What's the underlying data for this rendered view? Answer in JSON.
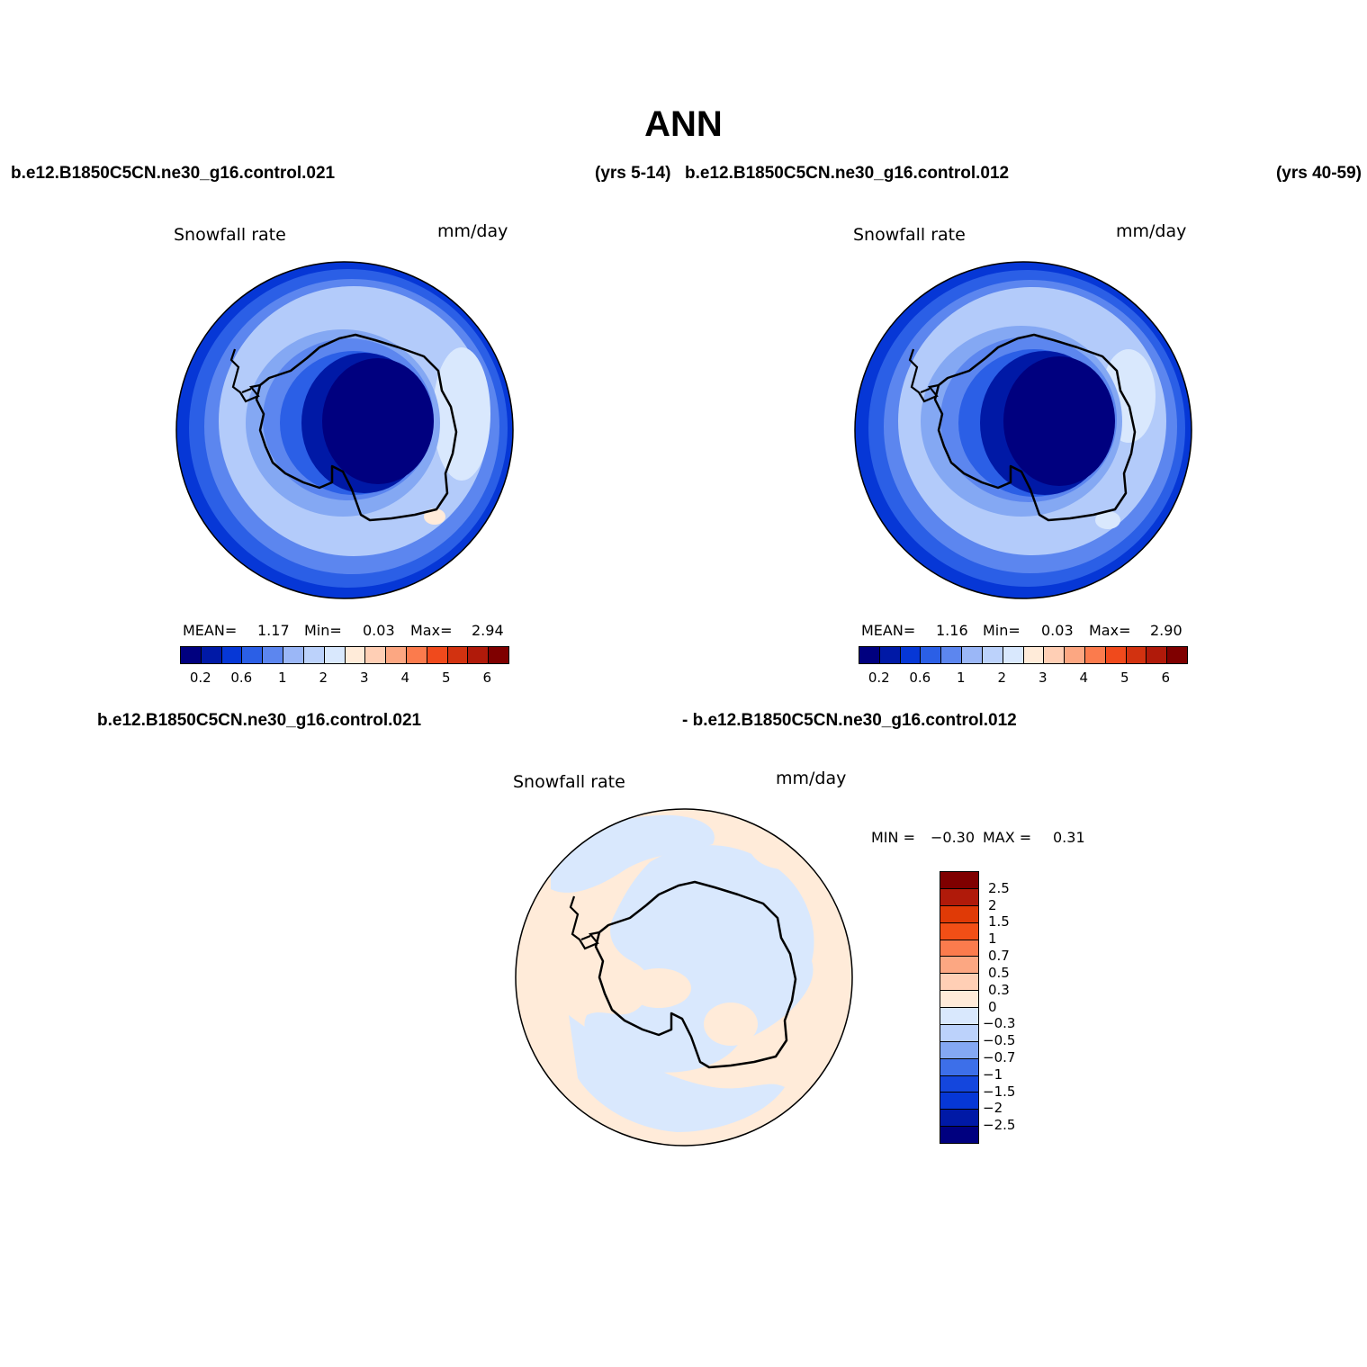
{
  "title": "ANN",
  "header": {
    "case1": "b.e12.B1850C5CN.ne30_g16.control.021",
    "years1": "(yrs 5-14)",
    "case2": "b.e12.B1850C5CN.ne30_g16.control.012",
    "years2": "(yrs 40-59)",
    "diff_case1": "b.e12.B1850C5CN.ne30_g16.control.021",
    "diff_case2": "- b.e12.B1850C5CN.ne30_g16.control.012"
  },
  "panels": [
    {
      "variable": "Snowfall rate",
      "units": "mm/day",
      "stats": {
        "mean_label": "MEAN=",
        "mean": "1.17",
        "min_label": "Min=",
        "min": "0.03",
        "max_label": "Max=",
        "max": "2.94"
      }
    },
    {
      "variable": "Snowfall rate",
      "units": "mm/day",
      "stats": {
        "mean_label": "MEAN=",
        "mean": "1.16",
        "min_label": "Min=",
        "min": "0.03",
        "max_label": "Max=",
        "max": "2.90"
      }
    },
    {
      "variable": "Snowfall rate",
      "units": "mm/day",
      "stats": {
        "min_label": "MIN =",
        "min": "−0.30",
        "max_label": "MAX =",
        "max": "0.31"
      }
    }
  ],
  "colorbar_main": {
    "ticks": [
      "0.2",
      "0.6",
      "1",
      "2",
      "3",
      "4",
      "5",
      "6"
    ],
    "colors": [
      "#00007f",
      "#0019a6",
      "#0637d6",
      "#2b5fe6",
      "#5c86ef",
      "#9bb7f7",
      "#bcd2fb",
      "#d9e8fd",
      "#ffebd9",
      "#ffcfb5",
      "#fca782",
      "#fb7b4d",
      "#f04a1c",
      "#d23210",
      "#b01a0a",
      "#7f0000"
    ]
  },
  "colorbar_diff": {
    "ticks": [
      "2.5",
      "2",
      "1.5",
      "1",
      "0.7",
      "0.5",
      "0.3",
      "0",
      "−0.3",
      "−0.5",
      "−0.7",
      "−1",
      "−1.5",
      "−2",
      "−2.5"
    ],
    "colors": [
      "#7f0000",
      "#b01a0a",
      "#e03a06",
      "#f24f16",
      "#fb7b4d",
      "#fca782",
      "#ffcfb5",
      "#ffebd9",
      "#d9e8fd",
      "#bcd2fb",
      "#84a8f3",
      "#3d6fe9",
      "#1446dd",
      "#0637d6",
      "#0019a6",
      "#00007f"
    ]
  },
  "map_colors": {
    "deep": "#00007f",
    "d1": "#0019a6",
    "d2": "#0637d6",
    "d3": "#2b5fe6",
    "d4": "#5c86ef",
    "d5": "#84a8f3",
    "light": "#b3cbfa",
    "pale": "#d9e8fd",
    "peach": "#ffebd9",
    "coast": "#000000"
  }
}
